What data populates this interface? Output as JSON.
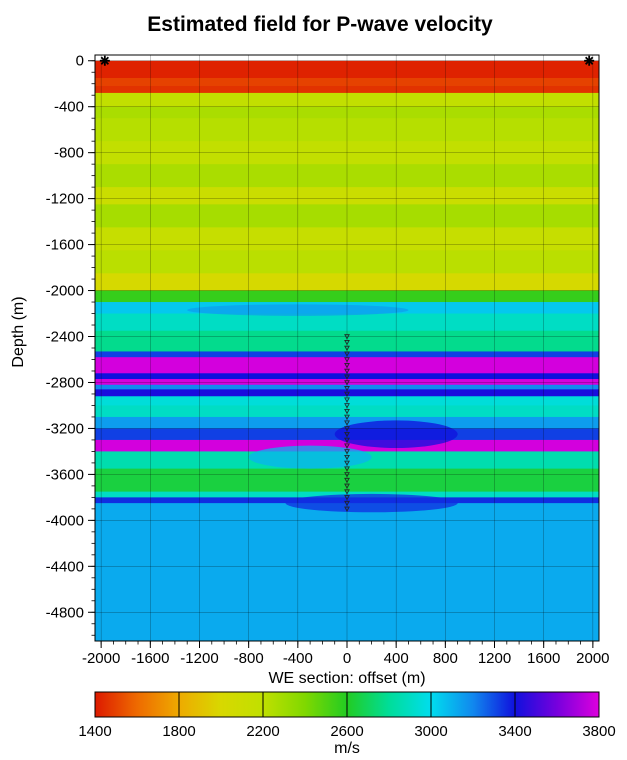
{
  "chart_data": {
    "type": "heatmap",
    "title": "Estimated field for P-wave velocity",
    "xlabel": "WE section: offset (m)",
    "ylabel": "Depth (m)",
    "xlim": [
      -2050,
      2050
    ],
    "ylim": [
      -5050,
      50
    ],
    "x_ticks": [
      -2000,
      -1600,
      -1200,
      -800,
      -400,
      0,
      400,
      800,
      1200,
      1600,
      2000
    ],
    "y_ticks": [
      0,
      -400,
      -800,
      -1200,
      -1600,
      -2000,
      -2400,
      -2800,
      -3200,
      -3600,
      -4000,
      -4400,
      -4800
    ],
    "grid": true,
    "colorbar": {
      "label": "m/s",
      "range": [
        1400,
        3800
      ],
      "ticks": [
        1400,
        1800,
        2200,
        2600,
        3000,
        3400,
        3800
      ],
      "stops": [
        {
          "v": 1400,
          "color": "#dd1a00"
        },
        {
          "v": 1600,
          "color": "#ee6a00"
        },
        {
          "v": 1800,
          "color": "#eeaa00"
        },
        {
          "v": 2000,
          "color": "#d8d800"
        },
        {
          "v": 2200,
          "color": "#c0e000"
        },
        {
          "v": 2400,
          "color": "#80d800"
        },
        {
          "v": 2600,
          "color": "#22cc22"
        },
        {
          "v": 2800,
          "color": "#00dd99"
        },
        {
          "v": 3000,
          "color": "#00ddee"
        },
        {
          "v": 3200,
          "color": "#1188ee"
        },
        {
          "v": 3400,
          "color": "#1010dd"
        },
        {
          "v": 3600,
          "color": "#7700dd"
        },
        {
          "v": 3800,
          "color": "#dd00dd"
        }
      ]
    },
    "velocity_layers": [
      {
        "top": 0,
        "bottom": -150,
        "velocity": 1420
      },
      {
        "top": -150,
        "bottom": -220,
        "velocity": 1500
      },
      {
        "top": -220,
        "bottom": -280,
        "velocity": 1460
      },
      {
        "top": -280,
        "bottom": -400,
        "velocity": 2180
      },
      {
        "top": -400,
        "bottom": -500,
        "velocity": 2270
      },
      {
        "top": -500,
        "bottom": -700,
        "velocity": 2230
      },
      {
        "top": -700,
        "bottom": -900,
        "velocity": 2180
      },
      {
        "top": -900,
        "bottom": -1100,
        "velocity": 2270
      },
      {
        "top": -1100,
        "bottom": -1250,
        "velocity": 2120
      },
      {
        "top": -1250,
        "bottom": -1450,
        "velocity": 2280
      },
      {
        "top": -1450,
        "bottom": -1650,
        "velocity": 2150
      },
      {
        "top": -1650,
        "bottom": -1850,
        "velocity": 2220
      },
      {
        "top": -1850,
        "bottom": -2000,
        "velocity": 2020
      },
      {
        "top": -2000,
        "bottom": -2100,
        "velocity": 2560
      },
      {
        "top": -2100,
        "bottom": -2200,
        "velocity": 3050
      },
      {
        "top": -2200,
        "bottom": -2350,
        "velocity": 2900
      },
      {
        "top": -2350,
        "bottom": -2530,
        "velocity": 2780
      },
      {
        "top": -2530,
        "bottom": -2580,
        "velocity": 3320
      },
      {
        "top": -2580,
        "bottom": -2720,
        "velocity": 3780
      },
      {
        "top": -2720,
        "bottom": -2770,
        "velocity": 3400
      },
      {
        "top": -2770,
        "bottom": -2820,
        "velocity": 3780
      },
      {
        "top": -2820,
        "bottom": -2860,
        "velocity": 3200
      },
      {
        "top": -2860,
        "bottom": -2920,
        "velocity": 3420
      },
      {
        "top": -2920,
        "bottom": -3000,
        "velocity": 2950
      },
      {
        "top": -3000,
        "bottom": -3100,
        "velocity": 2900
      },
      {
        "top": -3100,
        "bottom": -3200,
        "velocity": 3150
      },
      {
        "top": -3200,
        "bottom": -3300,
        "velocity": 3320
      },
      {
        "top": -3300,
        "bottom": -3400,
        "velocity": 3780
      },
      {
        "top": -3400,
        "bottom": -3550,
        "velocity": 2850
      },
      {
        "top": -3550,
        "bottom": -3750,
        "velocity": 2650
      },
      {
        "top": -3750,
        "bottom": -3800,
        "velocity": 2900
      },
      {
        "top": -3800,
        "bottom": -3850,
        "velocity": 3350
      },
      {
        "top": -3850,
        "bottom": -5050,
        "velocity": 3120
      }
    ],
    "anomalies": [
      {
        "x": 400,
        "y": -3250,
        "rx": 500,
        "ry": 120,
        "velocity": 3400
      },
      {
        "x": 200,
        "y": -3850,
        "rx": 700,
        "ry": 80,
        "velocity": 3350
      },
      {
        "x": -300,
        "y": -3450,
        "rx": 500,
        "ry": 100,
        "velocity": 3100
      },
      {
        "x": -400,
        "y": -2170,
        "rx": 900,
        "ry": 50,
        "velocity": 3150
      }
    ],
    "sources": [
      {
        "x": -1970,
        "y": 0
      },
      {
        "x": 1970,
        "y": 0
      }
    ],
    "receivers": {
      "x": 0,
      "from": -2400,
      "to": -3900,
      "step": 50
    }
  }
}
